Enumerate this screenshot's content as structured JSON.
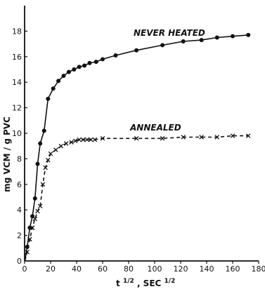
{
  "chart_data": {
    "type": "line",
    "title": "",
    "xlabel": "t1/2, SEC1/2",
    "xlabel_parts": {
      "base1": "t",
      "exp1": "1/2",
      "mid": ", SEC",
      "exp2": "1/2"
    },
    "ylabel": "mg VCM / g PVC",
    "xlim": [
      0,
      180
    ],
    "ylim": [
      0,
      20
    ],
    "xticks": [
      0,
      20,
      40,
      60,
      80,
      100,
      120,
      140,
      160,
      180
    ],
    "yticks": [
      0,
      2,
      4,
      6,
      8,
      10,
      12,
      14,
      16,
      18
    ],
    "grid": false,
    "series": [
      {
        "name": "NEVER HEATED",
        "marker": "circle",
        "line": "solid",
        "color": "#111111",
        "x": [
          2,
          4,
          6,
          8,
          10,
          12,
          15,
          18,
          22,
          26,
          30,
          34,
          38,
          42,
          46,
          50,
          55,
          60,
          70,
          86,
          106,
          122,
          136,
          148,
          160,
          172
        ],
        "y": [
          1.1,
          2.6,
          3.5,
          4.9,
          7.6,
          9.2,
          10.2,
          12.7,
          13.5,
          14.1,
          14.5,
          14.8,
          15.0,
          15.2,
          15.3,
          15.5,
          15.6,
          15.8,
          16.1,
          16.5,
          16.9,
          17.2,
          17.3,
          17.5,
          17.6,
          17.7
        ]
      },
      {
        "name": "ANNEALED",
        "marker": "x",
        "line": "dashed",
        "color": "#111111",
        "x": [
          2,
          4,
          6,
          8,
          10,
          12,
          14,
          16,
          18,
          20,
          24,
          28,
          32,
          36,
          39,
          42,
          45,
          48,
          51,
          54,
          60,
          86,
          106,
          122,
          136,
          148,
          160,
          172
        ],
        "y": [
          0.7,
          1.7,
          2.6,
          3.3,
          3.9,
          4.3,
          6.0,
          7.3,
          7.9,
          8.4,
          8.7,
          9.0,
          9.2,
          9.3,
          9.4,
          9.5,
          9.5,
          9.5,
          9.5,
          9.5,
          9.6,
          9.6,
          9.6,
          9.7,
          9.7,
          9.7,
          9.8,
          9.8
        ]
      }
    ]
  }
}
